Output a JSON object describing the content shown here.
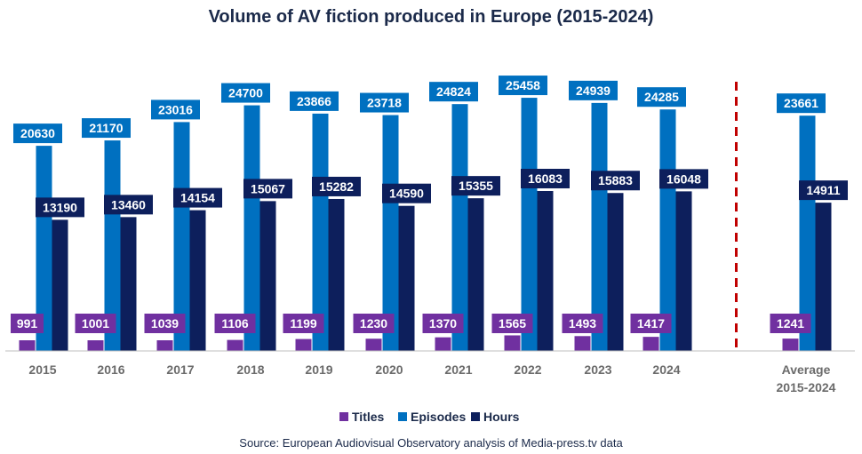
{
  "chart_data": {
    "type": "bar",
    "title": "Volume of AV fiction produced in Europe (2015-2024)",
    "categories": [
      "2015",
      "2016",
      "2017",
      "2018",
      "2019",
      "2020",
      "2021",
      "2022",
      "2023",
      "2024",
      "Average 2015-2024"
    ],
    "category_lines": [
      [
        "2015"
      ],
      [
        "2016"
      ],
      [
        "2017"
      ],
      [
        "2018"
      ],
      [
        "2019"
      ],
      [
        "2020"
      ],
      [
        "2021"
      ],
      [
        "2022"
      ],
      [
        "2023"
      ],
      [
        "2024"
      ],
      [
        "Average",
        "2015-2024"
      ]
    ],
    "series": [
      {
        "name": "Titles",
        "color": "#7030a0",
        "values": [
          991,
          1001,
          1039,
          1106,
          1199,
          1230,
          1370,
          1565,
          1493,
          1417,
          1241
        ]
      },
      {
        "name": "Episodes",
        "color": "#0070c0",
        "values": [
          20630,
          21170,
          23016,
          24700,
          23866,
          23718,
          24824,
          25458,
          24939,
          24285,
          23661
        ]
      },
      {
        "name": "Hours",
        "color": "#0d1f5c",
        "values": [
          13190,
          13460,
          14154,
          15067,
          15282,
          14590,
          15355,
          16083,
          15883,
          16048,
          14911
        ]
      }
    ],
    "ylim": [
      0,
      26000
    ],
    "xlabel": "",
    "ylabel": "",
    "grid": false,
    "legend": "bottom-center",
    "separator_before_category": 10,
    "separator_color": "#c00000",
    "axis_color": "#bfbfbf",
    "tick_color": "#6b6b6b"
  },
  "source": "Source: European Audiovisual Observatory analysis of Media-press.tv data"
}
